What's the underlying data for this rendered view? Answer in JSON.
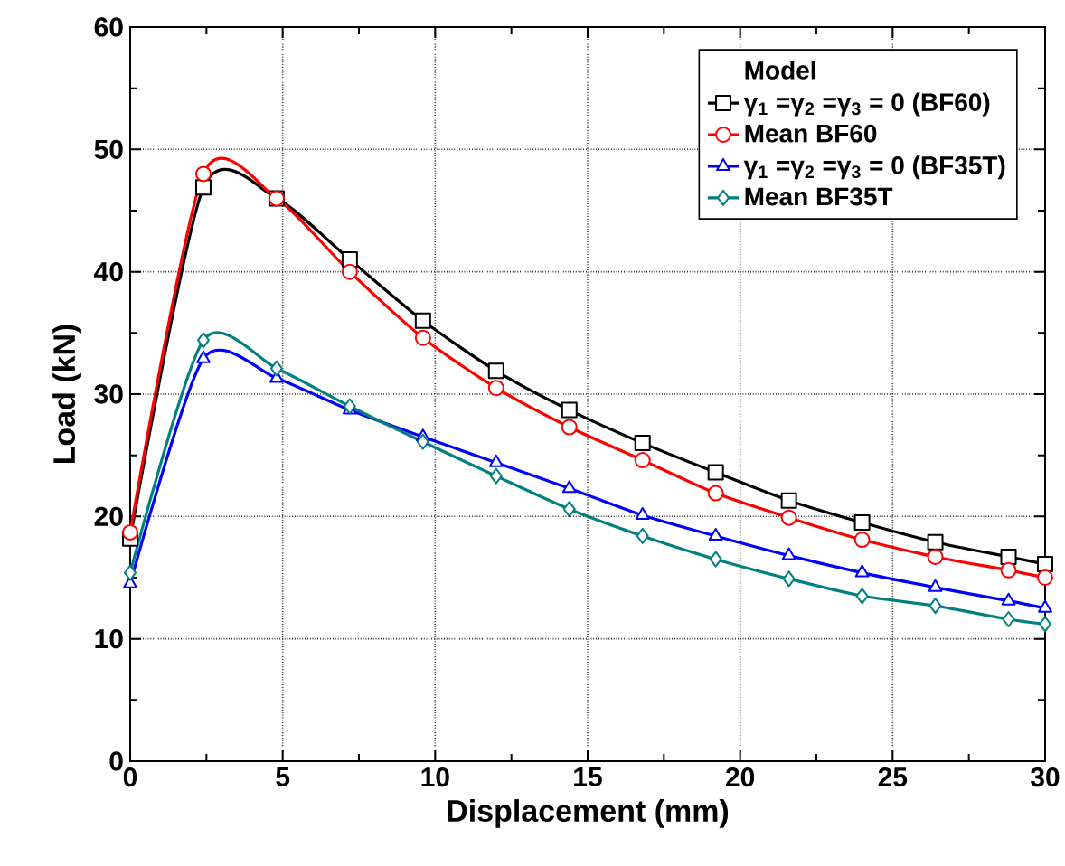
{
  "chart_data": {
    "type": "line",
    "xlabel": "Displacement (mm)",
    "ylabel": "Load (kN)",
    "legend_title": "Model",
    "xlim": [
      0,
      30
    ],
    "ylim": [
      0,
      60
    ],
    "xticks": [
      0,
      5,
      10,
      15,
      20,
      25,
      30
    ],
    "yticks": [
      0,
      10,
      20,
      30,
      40,
      50,
      60
    ],
    "grid": true,
    "legend": "top right",
    "line_style": "solid",
    "series": [
      {
        "name": "γ$_{1}$ =γ$_{2}$ =γ$_{3}$ = 0 (BF60)",
        "color": "#000000",
        "marker": "square",
        "x": [
          0,
          2.4,
          4.8,
          7.2,
          9.6,
          12,
          14.4,
          16.8,
          19.2,
          21.6,
          24,
          26.4,
          28.8,
          30
        ],
        "values": [
          18.2,
          46.9,
          46.0,
          41.0,
          36.0,
          31.9,
          28.7,
          26.0,
          23.6,
          21.3,
          19.5,
          17.9,
          16.7,
          16.1
        ]
      },
      {
        "name": "Mean BF60",
        "color": "#ff0000",
        "marker": "circle",
        "x": [
          0,
          2.4,
          4.8,
          7.2,
          9.6,
          12,
          14.4,
          16.8,
          19.2,
          21.6,
          24,
          26.4,
          28.8,
          30
        ],
        "values": [
          18.7,
          48.0,
          46.0,
          40.0,
          34.6,
          30.5,
          27.3,
          24.6,
          21.9,
          19.9,
          18.1,
          16.7,
          15.6,
          15.0
        ]
      },
      {
        "name": "γ$_{1}$ =γ$_{2}$ =γ$_{3}$ = 0 (BF35T)",
        "color": "#0000ff",
        "marker": "triangle",
        "x": [
          0,
          2.4,
          4.8,
          7.2,
          9.6,
          12,
          14.4,
          16.8,
          19.2,
          21.6,
          24,
          26.4,
          28.8,
          30
        ],
        "values": [
          14.5,
          32.9,
          31.3,
          28.7,
          26.5,
          24.4,
          22.3,
          20.1,
          18.4,
          16.8,
          15.4,
          14.2,
          13.1,
          12.5
        ]
      },
      {
        "name": "Mean BF35T",
        "color": "#008080",
        "marker": "diamond",
        "x": [
          0,
          2.4,
          4.8,
          7.2,
          9.6,
          12,
          14.4,
          16.8,
          19.2,
          21.6,
          24,
          26.4,
          28.8,
          30
        ],
        "values": [
          15.4,
          34.4,
          32.1,
          29.0,
          26.1,
          23.3,
          20.6,
          18.4,
          16.5,
          14.9,
          13.5,
          12.7,
          11.6,
          11.2
        ]
      }
    ]
  }
}
